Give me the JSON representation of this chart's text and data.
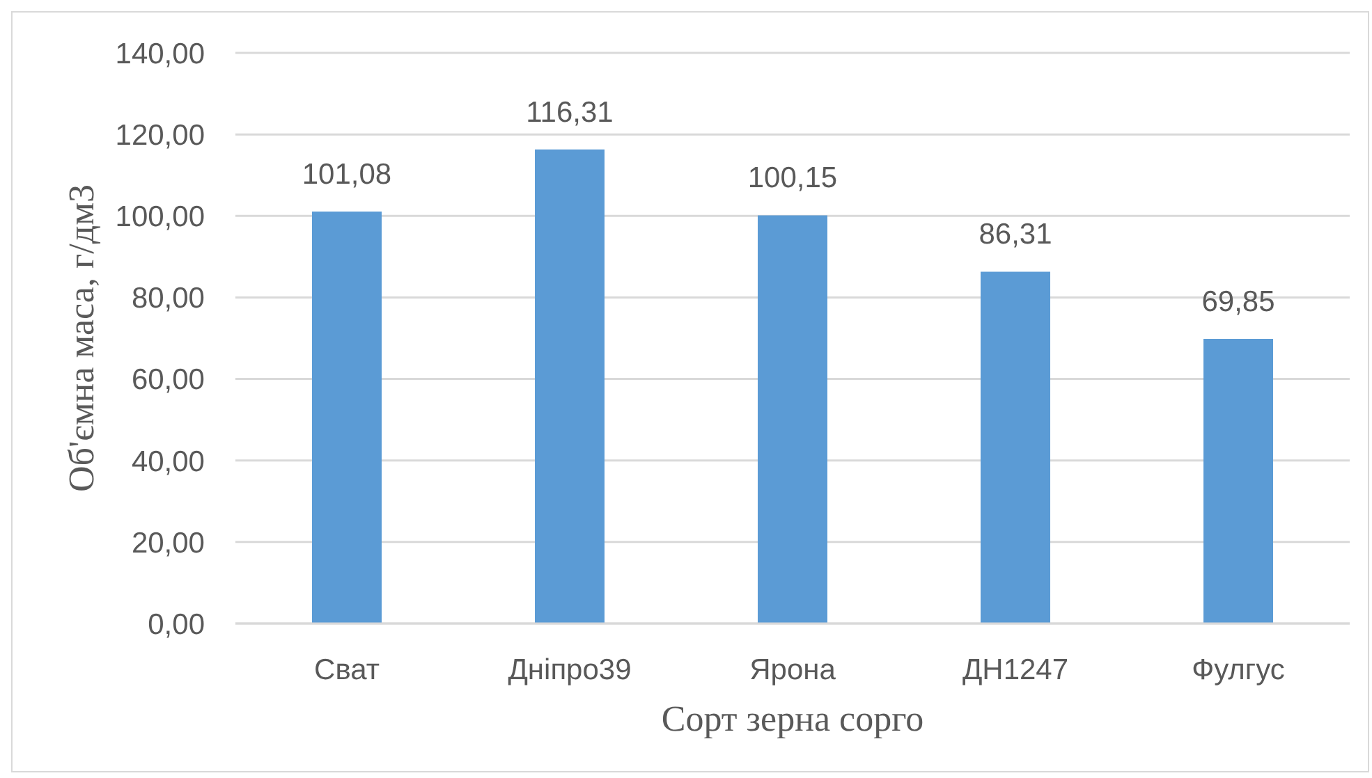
{
  "chart_data": {
    "type": "bar",
    "xlabel": "Сорт зерна сорго",
    "ylabel": "Об'ємна маса, г/дм3",
    "categories": [
      "Сват",
      "Дніпро39",
      "Ярона",
      "ДН1247",
      "Фулгус"
    ],
    "values": [
      101.08,
      116.31,
      100.15,
      86.31,
      69.85
    ],
    "color": "#5b9bd5",
    "value_labels": [
      "101,08",
      "116,31",
      "100,15",
      "86,31",
      "69,85"
    ],
    "ylim": [
      0,
      140
    ],
    "yticks": [
      {
        "value": 0,
        "label": "0,00"
      },
      {
        "value": 20,
        "label": "20,00"
      },
      {
        "value": 40,
        "label": "40,00"
      },
      {
        "value": 60,
        "label": "60,00"
      },
      {
        "value": 80,
        "label": "80,00"
      },
      {
        "value": 100,
        "label": "100,00"
      },
      {
        "value": 120,
        "label": "120,00"
      },
      {
        "value": 140,
        "label": "140,00"
      }
    ],
    "grid": "y"
  }
}
